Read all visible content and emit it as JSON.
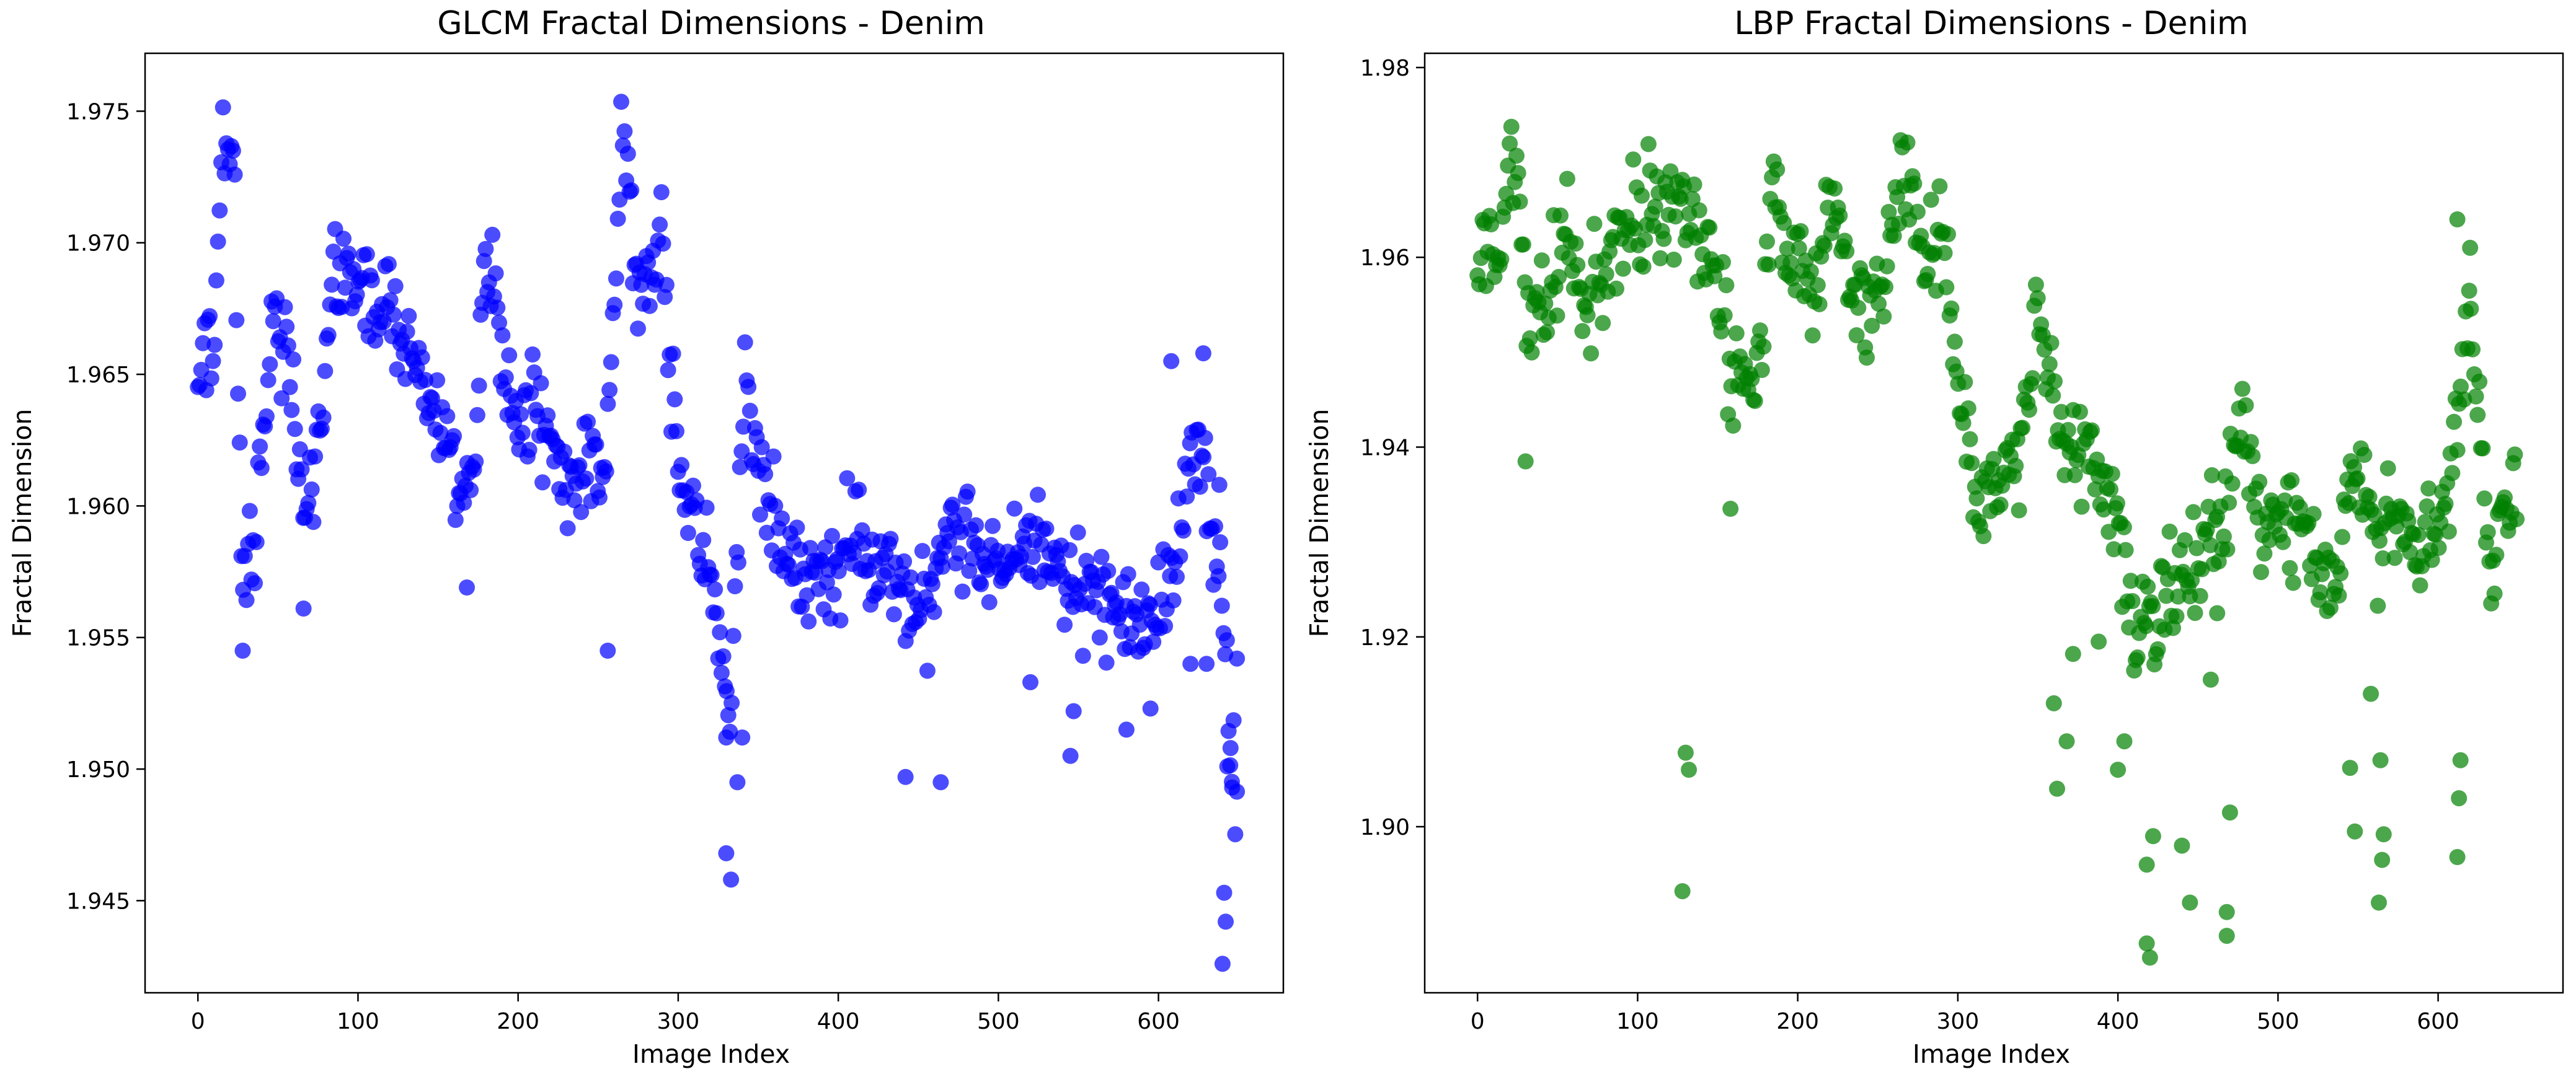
{
  "figure": {
    "left_title": "GLCM Fractal Dimensions - Denim",
    "right_title": "LBP Fractal Dimensions - Denim"
  },
  "chart_data": [
    {
      "type": "scatter",
      "title": "GLCM Fractal Dimensions - Denim",
      "xlabel": "Image Index",
      "ylabel": "Fractal Dimension",
      "xlim": [
        -33,
        678
      ],
      "ylim": [
        1.9415,
        1.9772
      ],
      "xticks": [
        0,
        100,
        200,
        300,
        400,
        500,
        600
      ],
      "xtick_labels": [
        "0",
        "100",
        "200",
        "300",
        "400",
        "500",
        "600"
      ],
      "yticks": [
        1.945,
        1.95,
        1.955,
        1.96,
        1.965,
        1.97,
        1.975
      ],
      "ytick_labels": [
        "1.945",
        "1.950",
        "1.955",
        "1.960",
        "1.965",
        "1.970",
        "1.975"
      ],
      "grid": false,
      "color": "#0000ff",
      "n_points": 650,
      "anchors": [
        [
          0,
          1.964
        ],
        [
          10,
          1.9665
        ],
        [
          15,
          1.9735
        ],
        [
          22,
          1.974
        ],
        [
          28,
          1.956
        ],
        [
          35,
          1.9585
        ],
        [
          45,
          1.966
        ],
        [
          55,
          1.9665
        ],
        [
          65,
          1.96
        ],
        [
          75,
          1.9625
        ],
        [
          85,
          1.969
        ],
        [
          100,
          1.968
        ],
        [
          115,
          1.9675
        ],
        [
          130,
          1.9665
        ],
        [
          145,
          1.964
        ],
        [
          160,
          1.961
        ],
        [
          172,
          1.96
        ],
        [
          180,
          1.9705
        ],
        [
          190,
          1.9655
        ],
        [
          200,
          1.9625
        ],
        [
          210,
          1.964
        ],
        [
          222,
          1.962
        ],
        [
          235,
          1.9605
        ],
        [
          245,
          1.962
        ],
        [
          255,
          1.961
        ],
        [
          265,
          1.9745
        ],
        [
          275,
          1.968
        ],
        [
          290,
          1.97
        ],
        [
          300,
          1.961
        ],
        [
          312,
          1.9595
        ],
        [
          320,
          1.957
        ],
        [
          332,
          1.952
        ],
        [
          342,
          1.9655
        ],
        [
          352,
          1.961
        ],
        [
          365,
          1.958
        ],
        [
          380,
          1.957
        ],
        [
          395,
          1.9575
        ],
        [
          410,
          1.959
        ],
        [
          425,
          1.958
        ],
        [
          440,
          1.957
        ],
        [
          455,
          1.956
        ],
        [
          470,
          1.9595
        ],
        [
          490,
          1.9585
        ],
        [
          505,
          1.9575
        ],
        [
          520,
          1.9585
        ],
        [
          535,
          1.9575
        ],
        [
          550,
          1.957
        ],
        [
          565,
          1.9565
        ],
        [
          580,
          1.956
        ],
        [
          595,
          1.9555
        ],
        [
          610,
          1.9575
        ],
        [
          625,
          1.963
        ],
        [
          640,
          1.956
        ],
        [
          649,
          1.948
        ]
      ],
      "spread": 0.0018,
      "outliers": [
        [
          28,
          1.9545
        ],
        [
          256,
          1.9545
        ],
        [
          330,
          1.9468
        ],
        [
          333,
          1.9458
        ],
        [
          337,
          1.9495
        ],
        [
          330,
          1.9512
        ],
        [
          340,
          1.9512
        ],
        [
          442,
          1.9497
        ],
        [
          464,
          1.9495
        ],
        [
          520,
          1.9533
        ],
        [
          545,
          1.9505
        ],
        [
          547,
          1.9522
        ],
        [
          580,
          1.9515
        ],
        [
          595,
          1.9523
        ],
        [
          641,
          1.9453
        ],
        [
          642,
          1.9442
        ],
        [
          640,
          1.9426
        ],
        [
          643,
          1.9501
        ],
        [
          645,
          1.9508
        ],
        [
          646,
          1.9493
        ],
        [
          649,
          1.9542
        ],
        [
          630,
          1.954
        ],
        [
          638,
          1.9608
        ],
        [
          66,
          1.9561
        ],
        [
          168,
          1.9569
        ],
        [
          620,
          1.954
        ],
        [
          608,
          1.9655
        ],
        [
          628,
          1.9658
        ]
      ]
    },
    {
      "type": "scatter",
      "title": "LBP Fractal Dimensions - Denim",
      "xlabel": "Image Index",
      "ylabel": "Fractal Dimension",
      "xlim": [
        -33,
        678
      ],
      "ylim": [
        1.8825,
        1.9815
      ],
      "xticks": [
        0,
        100,
        200,
        300,
        400,
        500,
        600
      ],
      "xtick_labels": [
        "0",
        "100",
        "200",
        "300",
        "400",
        "500",
        "600"
      ],
      "yticks": [
        1.9,
        1.92,
        1.94,
        1.96,
        1.98
      ],
      "ytick_labels": [
        "1.90",
        "1.92",
        "1.94",
        "1.96",
        "1.98"
      ],
      "grid": false,
      "color": "#008000",
      "n_points": 650,
      "anchors": [
        [
          0,
          1.959
        ],
        [
          15,
          1.962
        ],
        [
          22,
          1.974
        ],
        [
          30,
          1.956
        ],
        [
          40,
          1.954
        ],
        [
          55,
          1.962
        ],
        [
          70,
          1.956
        ],
        [
          85,
          1.96
        ],
        [
          100,
          1.965
        ],
        [
          115,
          1.964
        ],
        [
          130,
          1.964
        ],
        [
          145,
          1.961
        ],
        [
          160,
          1.947
        ],
        [
          175,
          1.948
        ],
        [
          185,
          1.968
        ],
        [
          195,
          1.96
        ],
        [
          210,
          1.957
        ],
        [
          220,
          1.968
        ],
        [
          235,
          1.956
        ],
        [
          250,
          1.953
        ],
        [
          265,
          1.969
        ],
        [
          280,
          1.96
        ],
        [
          290,
          1.965
        ],
        [
          300,
          1.946
        ],
        [
          315,
          1.934
        ],
        [
          325,
          1.937
        ],
        [
          338,
          1.938
        ],
        [
          352,
          1.954
        ],
        [
          365,
          1.94
        ],
        [
          378,
          1.941
        ],
        [
          390,
          1.936
        ],
        [
          400,
          1.932
        ],
        [
          410,
          1.921
        ],
        [
          422,
          1.922
        ],
        [
          435,
          1.926
        ],
        [
          450,
          1.93
        ],
        [
          462,
          1.93
        ],
        [
          475,
          1.942
        ],
        [
          490,
          1.933
        ],
        [
          505,
          1.932
        ],
        [
          520,
          1.93
        ],
        [
          535,
          1.926
        ],
        [
          548,
          1.938
        ],
        [
          562,
          1.929
        ],
        [
          575,
          1.932
        ],
        [
          590,
          1.929
        ],
        [
          605,
          1.933
        ],
        [
          620,
          1.955
        ],
        [
          632,
          1.927
        ],
        [
          649,
          1.936
        ]
      ],
      "spread": 0.0055,
      "outliers": [
        [
          128,
          1.8932
        ],
        [
          130,
          1.9078
        ],
        [
          132,
          1.906
        ],
        [
          158,
          1.9335
        ],
        [
          30,
          1.9385
        ],
        [
          418,
          1.8877
        ],
        [
          420,
          1.8862
        ],
        [
          418,
          1.896
        ],
        [
          422,
          1.899
        ],
        [
          440,
          1.898
        ],
        [
          445,
          1.892
        ],
        [
          468,
          1.891
        ],
        [
          468,
          1.8885
        ],
        [
          470,
          1.9015
        ],
        [
          548,
          1.8995
        ],
        [
          563,
          1.892
        ],
        [
          565,
          1.8965
        ],
        [
          566,
          1.8992
        ],
        [
          612,
          1.8968
        ],
        [
          613,
          1.903
        ],
        [
          614,
          1.907
        ],
        [
          360,
          1.913
        ],
        [
          362,
          1.904
        ],
        [
          368,
          1.909
        ],
        [
          400,
          1.906
        ],
        [
          404,
          1.909
        ],
        [
          458,
          1.9155
        ],
        [
          462,
          1.9225
        ],
        [
          372,
          1.9182
        ],
        [
          388,
          1.9195
        ],
        [
          545,
          1.9062
        ],
        [
          558,
          1.914
        ],
        [
          564,
          1.907
        ],
        [
          612,
          1.964
        ],
        [
          620,
          1.961
        ]
      ]
    }
  ]
}
